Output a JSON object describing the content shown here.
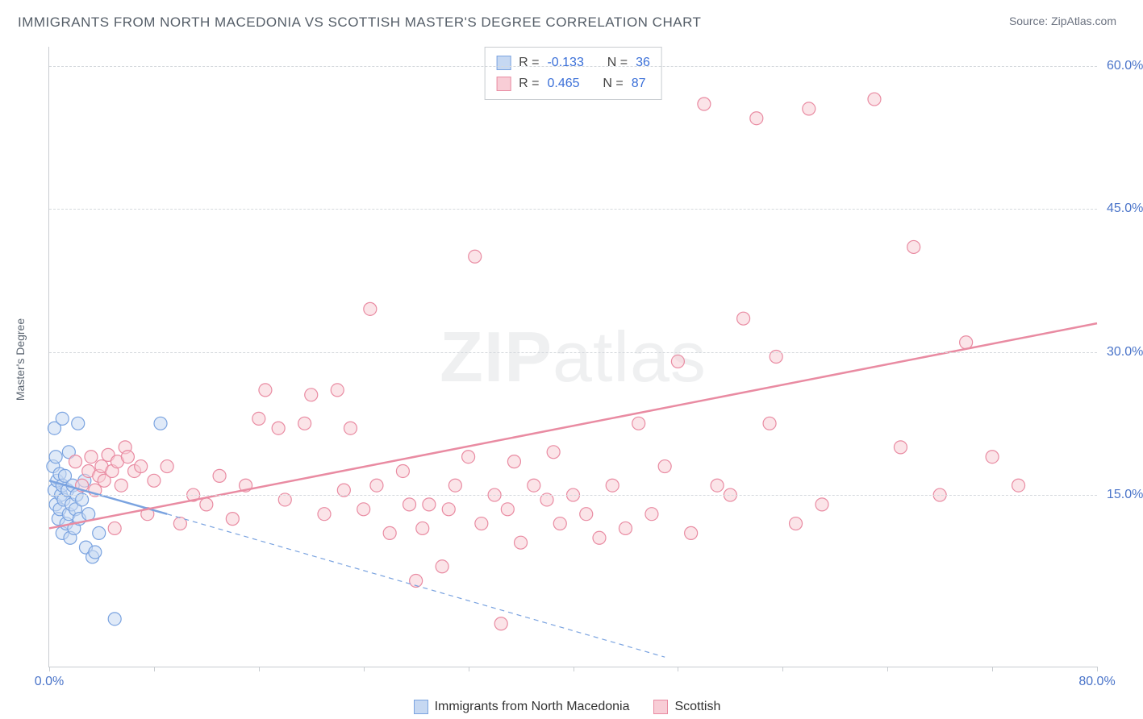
{
  "title": "IMMIGRANTS FROM NORTH MACEDONIA VS SCOTTISH MASTER'S DEGREE CORRELATION CHART",
  "source_label": "Source:",
  "source_name": "ZipAtlas.com",
  "ylabel": "Master's Degree",
  "watermark_bold": "ZIP",
  "watermark_rest": "atlas",
  "chart": {
    "type": "scatter",
    "xlim": [
      0,
      80
    ],
    "ylim": [
      -3,
      62
    ],
    "x_ticks_minor_step": 8,
    "y_ticks": [
      15,
      30,
      45,
      60
    ],
    "x_tick_labels": [
      {
        "x": 0,
        "label": "0.0%"
      },
      {
        "x": 80,
        "label": "80.0%"
      }
    ],
    "y_tick_labels": [
      {
        "y": 15,
        "label": "15.0%"
      },
      {
        "y": 30,
        "label": "30.0%"
      },
      {
        "y": 45,
        "label": "45.0%"
      },
      {
        "y": 60,
        "label": "60.0%"
      }
    ],
    "grid_color": "#d5d9dd",
    "axis_color": "#c8ccd0",
    "background": "#ffffff",
    "marker_radius": 8,
    "marker_stroke_width": 1.2,
    "line_width_solid": 2.5,
    "line_width_dashed": 1.2,
    "dash_pattern": "6,5"
  },
  "series": [
    {
      "name": "Immigrants from North Macedonia",
      "fill": "#c6d8f2",
      "stroke": "#7aa3e0",
      "fill_opacity": 0.55,
      "R": "-0.133",
      "N": "36",
      "trend_solid": {
        "x1": 0,
        "y1": 16.5,
        "x2": 9,
        "y2": 13.0
      },
      "trend_dashed": {
        "x1": 9,
        "y1": 13.0,
        "x2": 47,
        "y2": -2.0
      },
      "points": [
        [
          0.3,
          18.0
        ],
        [
          0.4,
          15.5
        ],
        [
          0.5,
          19.0
        ],
        [
          0.5,
          14.0
        ],
        [
          0.6,
          16.5
        ],
        [
          0.7,
          12.5
        ],
        [
          0.8,
          17.2
        ],
        [
          0.8,
          13.5
        ],
        [
          0.9,
          15.0
        ],
        [
          1.0,
          16.0
        ],
        [
          1.0,
          11.0
        ],
        [
          1.1,
          14.5
        ],
        [
          1.2,
          17.0
        ],
        [
          1.3,
          12.0
        ],
        [
          1.4,
          15.5
        ],
        [
          1.5,
          13.0
        ],
        [
          1.5,
          19.5
        ],
        [
          1.6,
          10.5
        ],
        [
          1.7,
          14.0
        ],
        [
          1.8,
          16.0
        ],
        [
          1.9,
          11.5
        ],
        [
          2.0,
          13.5
        ],
        [
          2.1,
          15.0
        ],
        [
          2.2,
          22.5
        ],
        [
          2.3,
          12.5
        ],
        [
          2.5,
          14.5
        ],
        [
          2.7,
          16.5
        ],
        [
          2.8,
          9.5
        ],
        [
          3.0,
          13.0
        ],
        [
          3.3,
          8.5
        ],
        [
          3.5,
          9.0
        ],
        [
          0.4,
          22.0
        ],
        [
          1.0,
          23.0
        ],
        [
          8.5,
          22.5
        ],
        [
          5.0,
          2.0
        ],
        [
          3.8,
          11.0
        ]
      ]
    },
    {
      "name": "Scottish",
      "fill": "#f8cdd6",
      "stroke": "#e98ba2",
      "fill_opacity": 0.55,
      "R": "0.465",
      "N": "87",
      "trend_solid": {
        "x1": 0,
        "y1": 11.5,
        "x2": 80,
        "y2": 33.0
      },
      "trend_dashed": null,
      "points": [
        [
          2.0,
          18.5
        ],
        [
          2.5,
          16.0
        ],
        [
          3.0,
          17.5
        ],
        [
          3.2,
          19.0
        ],
        [
          3.5,
          15.5
        ],
        [
          3.8,
          17.0
        ],
        [
          4.0,
          18.0
        ],
        [
          4.2,
          16.5
        ],
        [
          4.5,
          19.2
        ],
        [
          4.8,
          17.5
        ],
        [
          5.0,
          11.5
        ],
        [
          5.2,
          18.5
        ],
        [
          5.5,
          16.0
        ],
        [
          5.8,
          20.0
        ],
        [
          6.0,
          19.0
        ],
        [
          6.5,
          17.5
        ],
        [
          7.0,
          18.0
        ],
        [
          7.5,
          13.0
        ],
        [
          8.0,
          16.5
        ],
        [
          9.0,
          18.0
        ],
        [
          10.0,
          12.0
        ],
        [
          11.0,
          15.0
        ],
        [
          12.0,
          14.0
        ],
        [
          13.0,
          17.0
        ],
        [
          14.0,
          12.5
        ],
        [
          15.0,
          16.0
        ],
        [
          16.0,
          23.0
        ],
        [
          16.5,
          26.0
        ],
        [
          17.5,
          22.0
        ],
        [
          18.0,
          14.5
        ],
        [
          19.5,
          22.5
        ],
        [
          20.0,
          25.5
        ],
        [
          21.0,
          13.0
        ],
        [
          22.0,
          26.0
        ],
        [
          22.5,
          15.5
        ],
        [
          23.0,
          22.0
        ],
        [
          24.0,
          13.5
        ],
        [
          24.5,
          34.5
        ],
        [
          25.0,
          16.0
        ],
        [
          26.0,
          11.0
        ],
        [
          27.0,
          17.5
        ],
        [
          27.5,
          14.0
        ],
        [
          28.0,
          6.0
        ],
        [
          28.5,
          11.5
        ],
        [
          29.0,
          14.0
        ],
        [
          30.0,
          7.5
        ],
        [
          30.5,
          13.5
        ],
        [
          31.0,
          16.0
        ],
        [
          32.0,
          19.0
        ],
        [
          32.5,
          40.0
        ],
        [
          33.0,
          12.0
        ],
        [
          34.0,
          15.0
        ],
        [
          34.5,
          1.5
        ],
        [
          35.0,
          13.5
        ],
        [
          35.5,
          18.5
        ],
        [
          36.0,
          10.0
        ],
        [
          37.0,
          16.0
        ],
        [
          38.0,
          14.5
        ],
        [
          38.5,
          19.5
        ],
        [
          39.0,
          12.0
        ],
        [
          40.0,
          15.0
        ],
        [
          41.0,
          13.0
        ],
        [
          42.0,
          10.5
        ],
        [
          43.0,
          16.0
        ],
        [
          44.0,
          11.5
        ],
        [
          45.0,
          22.5
        ],
        [
          46.0,
          13.0
        ],
        [
          47.0,
          18.0
        ],
        [
          48.0,
          29.0
        ],
        [
          49.0,
          11.0
        ],
        [
          50.0,
          56.0
        ],
        [
          51.0,
          16.0
        ],
        [
          52.0,
          15.0
        ],
        [
          53.0,
          33.5
        ],
        [
          54.0,
          54.5
        ],
        [
          55.0,
          22.5
        ],
        [
          55.5,
          29.5
        ],
        [
          57.0,
          12.0
        ],
        [
          58.0,
          55.5
        ],
        [
          59.0,
          14.0
        ],
        [
          63.0,
          56.5
        ],
        [
          65.0,
          20.0
        ],
        [
          66.0,
          41.0
        ],
        [
          68.0,
          15.0
        ],
        [
          70.0,
          31.0
        ],
        [
          72.0,
          19.0
        ],
        [
          74.0,
          16.0
        ]
      ]
    }
  ],
  "stats_box": {
    "R_label": "R =",
    "N_label": "N ="
  },
  "legend_label_a": "Immigrants from North Macedonia",
  "legend_label_b": "Scottish"
}
